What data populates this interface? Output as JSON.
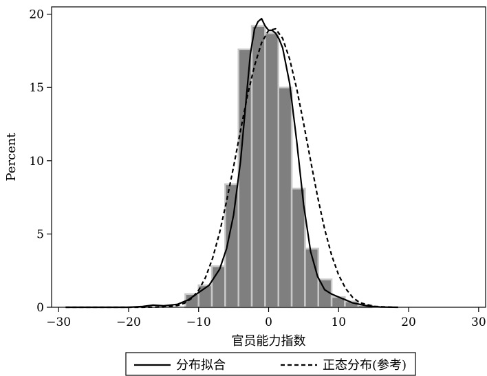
{
  "chart_data": {
    "type": "bar",
    "xlabel": "官员能力指数",
    "ylabel": "Percent",
    "xlim": [
      -31,
      31
    ],
    "ylim": [
      0,
      20.5
    ],
    "x_ticks": [
      {
        "value": -30,
        "label": "−30"
      },
      {
        "value": -20,
        "label": "−20"
      },
      {
        "value": -10,
        "label": "−10"
      },
      {
        "value": 0,
        "label": "0"
      },
      {
        "value": 10,
        "label": "10"
      },
      {
        "value": 20,
        "label": "20"
      },
      {
        "value": 30,
        "label": "30"
      }
    ],
    "y_ticks": [
      {
        "value": 0,
        "label": "0"
      },
      {
        "value": 5,
        "label": "5"
      },
      {
        "value": 10,
        "label": "10"
      },
      {
        "value": 15,
        "label": "15"
      },
      {
        "value": 20,
        "label": "20"
      }
    ],
    "histogram": {
      "bin_width": 1.9,
      "bins": [
        {
          "start": -11.9,
          "value": 0.9
        },
        {
          "start": -10.0,
          "value": 1.5
        },
        {
          "start": -8.1,
          "value": 2.8
        },
        {
          "start": -6.2,
          "value": 8.4
        },
        {
          "start": -4.3,
          "value": 17.6
        },
        {
          "start": -2.4,
          "value": 19.2
        },
        {
          "start": -0.5,
          "value": 18.7
        },
        {
          "start": 1.4,
          "value": 15.0
        },
        {
          "start": 3.3,
          "value": 8.1
        },
        {
          "start": 5.2,
          "value": 4.0
        },
        {
          "start": 7.1,
          "value": 1.9
        },
        {
          "start": 9.0,
          "value": 0.7
        },
        {
          "start": 10.9,
          "value": 0.4
        },
        {
          "start": 12.8,
          "value": 0.15
        }
      ],
      "fill_color": "#7f7f7f",
      "edge_color": "#c8c8c8"
    },
    "series": [
      {
        "name": "分布拟合",
        "style": "solid",
        "x": [
          -29,
          -20,
          -18,
          -16.5,
          -15,
          -13,
          -11.5,
          -10,
          -8.5,
          -7,
          -6,
          -5,
          -4,
          -3.2,
          -2.6,
          -2.0,
          -1.5,
          -1.0,
          -0.5,
          0,
          0.5,
          1,
          1.5,
          2,
          3,
          4,
          5,
          6,
          7,
          8,
          9,
          10,
          11,
          12,
          13,
          14,
          15,
          16,
          17,
          18.5
        ],
        "y": [
          0,
          0,
          0.05,
          0.15,
          0.1,
          0.2,
          0.5,
          1.0,
          1.5,
          2.6,
          4.0,
          6.3,
          10.0,
          14.2,
          17.3,
          19.0,
          19.5,
          19.7,
          19.2,
          18.9,
          18.9,
          18.7,
          18.3,
          17.7,
          15.3,
          11.4,
          7.0,
          3.8,
          2.1,
          1.2,
          0.9,
          0.7,
          0.5,
          0.3,
          0.2,
          0.1,
          0.05,
          0.02,
          0.01,
          0
        ]
      },
      {
        "name": "正态分布(参考)",
        "style": "dashed",
        "x": [
          -29,
          -18,
          -15,
          -13,
          -12,
          -11,
          -10,
          -9,
          -8,
          -7,
          -6,
          -5,
          -4,
          -3,
          -2,
          -1,
          0,
          1,
          2,
          3,
          4,
          5,
          6,
          7,
          8,
          9,
          10,
          11,
          12,
          13,
          15,
          18
        ],
        "y": [
          0,
          0,
          0.02,
          0.12,
          0.28,
          0.6,
          1.15,
          2.05,
          3.35,
          5.1,
          7.25,
          9.6,
          12.1,
          14.5,
          16.5,
          18.05,
          18.9,
          19.0,
          18.35,
          16.95,
          14.95,
          12.55,
          10.0,
          7.55,
          5.35,
          3.55,
          2.2,
          1.28,
          0.68,
          0.32,
          0.06,
          0
        ]
      }
    ],
    "legend": {
      "position": "bottom",
      "entries": [
        {
          "label": "分布拟合",
          "style": "solid"
        },
        {
          "label": "正态分布(参考)",
          "style": "dashed"
        }
      ]
    }
  }
}
